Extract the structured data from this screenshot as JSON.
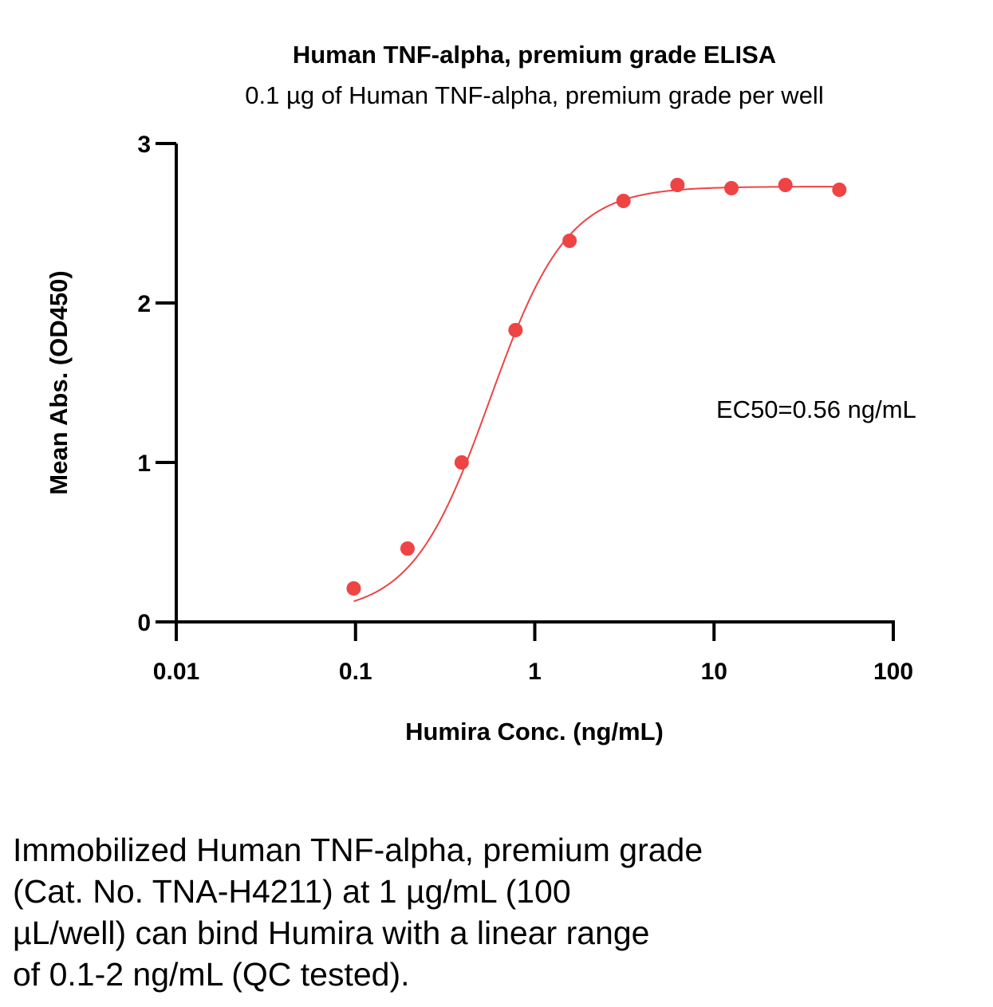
{
  "chart_data": {
    "type": "scatter",
    "title": "Human TNF-alpha, premium grade ELISA",
    "subtitle": "0.1 µg of Human TNF-alpha, premium grade per well",
    "xlabel": "Humira Conc. (ng/mL)",
    "ylabel": "Mean Abs. (OD450)",
    "xscale": "log",
    "xlim": [
      0.01,
      100
    ],
    "ylim": [
      0,
      3
    ],
    "xticks": [
      "0.01",
      "0.1",
      "1",
      "10",
      "100"
    ],
    "yticks": [
      "0",
      "1",
      "2",
      "3"
    ],
    "series": [
      {
        "x": [
          0.0977,
          0.195,
          0.391,
          0.781,
          1.563,
          3.125,
          6.25,
          12.5,
          25,
          50
        ],
        "y": [
          0.21,
          0.46,
          1.0,
          1.83,
          2.39,
          2.64,
          2.74,
          2.72,
          2.74,
          2.71
        ],
        "color": "#ee4444",
        "fit": "4PL"
      }
    ],
    "fit_params": {
      "bottom": 0.05,
      "top": 2.73,
      "ec50": 0.56,
      "hill": 2.0
    },
    "annotation": "EC50=0.56 ng/mL",
    "grid": false,
    "legend": "none"
  },
  "caption": [
    "Immobilized Human TNF-alpha, premium grade",
    "(Cat. No. TNA-H4211) at 1 µg/mL (100",
    "µL/well) can bind Humira with a linear range",
    "of 0.1-2 ng/mL (QC tested)."
  ]
}
